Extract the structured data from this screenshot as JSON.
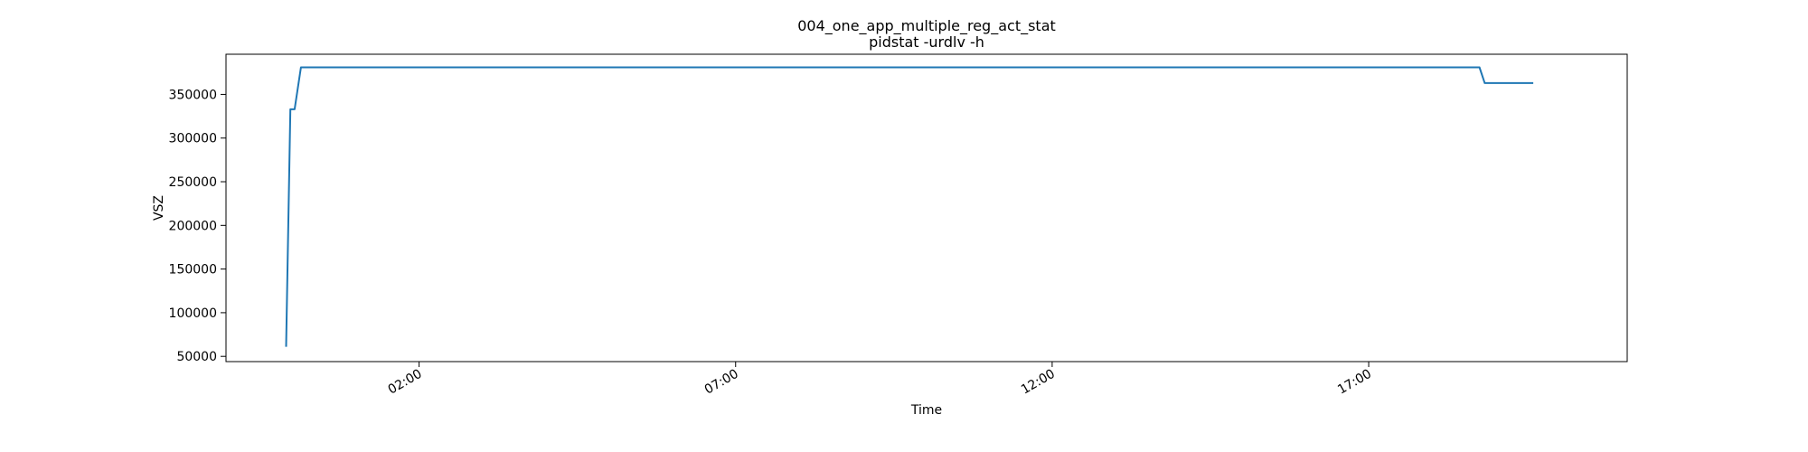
{
  "chart_data": {
    "type": "line",
    "title": "004_one_app_multiple_reg_act_stat",
    "subtitle": "pidstat -urdlv -h",
    "xlabel": "Time",
    "ylabel": "VSZ",
    "xlim": [
      "22:57",
      "21:05"
    ],
    "ylim": [
      44000,
      396000
    ],
    "x_ticks": [
      {
        "label": "02:00",
        "time": "02:00"
      },
      {
        "label": "07:00",
        "time": "07:00"
      },
      {
        "label": "12:00",
        "time": "12:00"
      },
      {
        "label": "17:00",
        "time": "17:00"
      }
    ],
    "y_ticks": [
      50000,
      100000,
      150000,
      200000,
      250000,
      300000,
      350000
    ],
    "grid": false,
    "series": [
      {
        "color": "#1f77b4",
        "points": [
          {
            "t": "23:54",
            "v": 61000
          },
          {
            "t": "23:58",
            "v": 333000
          },
          {
            "t": "00:02",
            "v": 333000
          },
          {
            "t": "00:08",
            "v": 381000
          },
          {
            "t": "18:45",
            "v": 381000
          },
          {
            "t": "18:50",
            "v": 363000
          },
          {
            "t": "19:36",
            "v": 363000
          }
        ]
      }
    ]
  }
}
